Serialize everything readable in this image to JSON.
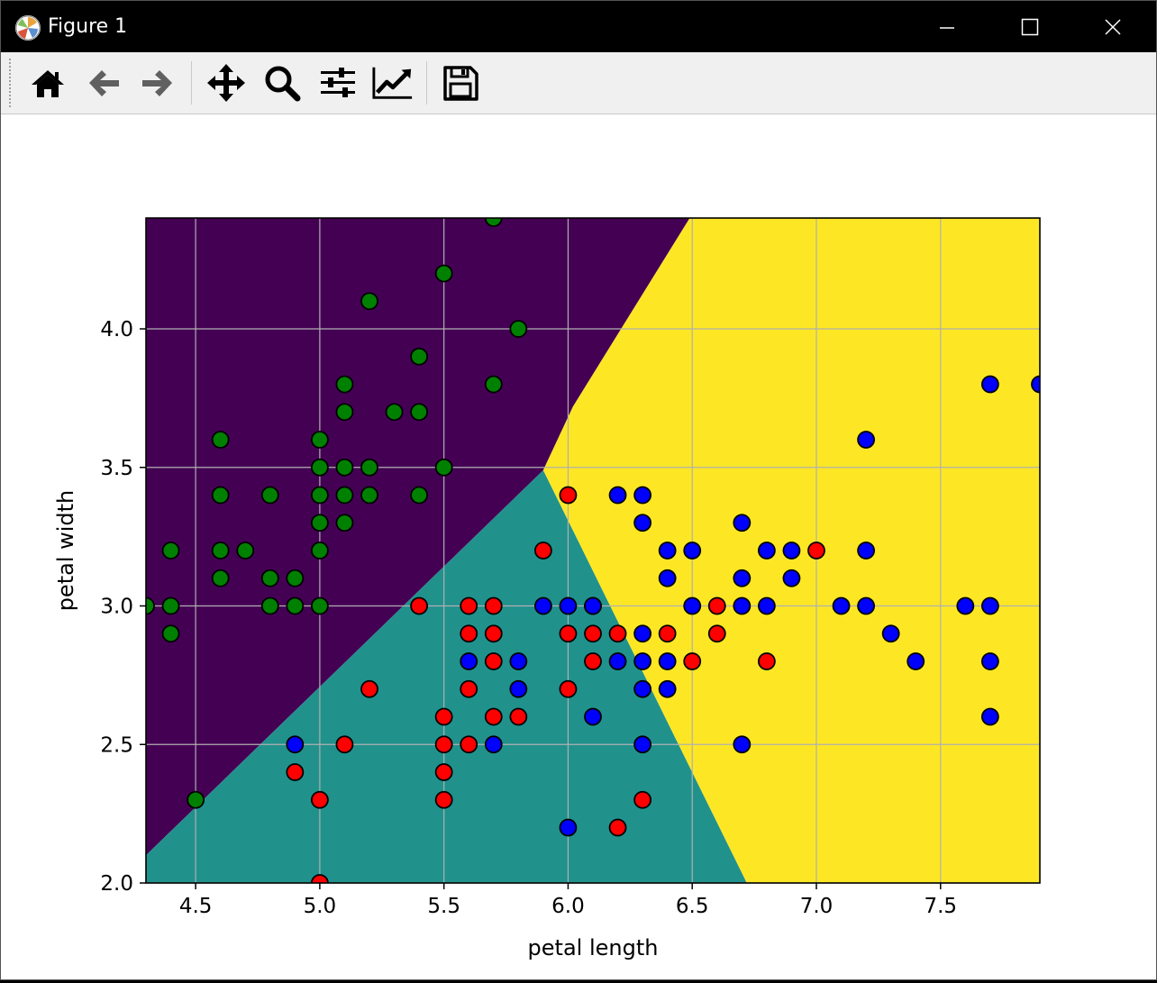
{
  "window": {
    "title": "Figure 1",
    "controls": [
      "minimize",
      "maximize",
      "close"
    ]
  },
  "toolbar": {
    "buttons": [
      {
        "name": "home",
        "icon": "home-icon"
      },
      {
        "name": "back",
        "icon": "back-arrow-icon"
      },
      {
        "name": "forward",
        "icon": "forward-arrow-icon"
      },
      {
        "name": "pan",
        "icon": "move-icon"
      },
      {
        "name": "zoom",
        "icon": "magnifier-icon"
      },
      {
        "name": "subplots",
        "icon": "sliders-icon"
      },
      {
        "name": "customize",
        "icon": "line-chart-icon"
      },
      {
        "name": "save",
        "icon": "floppy-disk-icon"
      }
    ]
  },
  "chart_data": {
    "type": "scatter",
    "title": "",
    "xlabel": "petal length",
    "ylabel": "petal width",
    "xlim": [
      4.3,
      7.9
    ],
    "ylim": [
      2.0,
      4.4
    ],
    "xticks": [
      "4.5",
      "5.0",
      "5.5",
      "6.0",
      "6.5",
      "7.0",
      "7.5"
    ],
    "yticks": [
      "2.0",
      "2.5",
      "3.0",
      "3.5",
      "4.0"
    ],
    "grid": true,
    "decision_regions": [
      {
        "label": "class 0",
        "color": "#440154",
        "polygon": [
          [
            4.3,
            2.1
          ],
          [
            5.9,
            3.49
          ],
          [
            6.02,
            3.72
          ],
          [
            6.49,
            4.4
          ],
          [
            4.3,
            4.4
          ]
        ]
      },
      {
        "label": "class 1",
        "color": "#21918c",
        "polygon": [
          [
            4.3,
            2.0
          ],
          [
            6.72,
            2.0
          ],
          [
            5.9,
            3.49
          ],
          [
            4.3,
            2.1
          ]
        ]
      },
      {
        "label": "class 2",
        "color": "#fde725",
        "polygon": [
          [
            6.72,
            2.0
          ],
          [
            7.9,
            2.0
          ],
          [
            7.9,
            4.4
          ],
          [
            6.49,
            4.4
          ],
          [
            6.02,
            3.72
          ],
          [
            5.9,
            3.49
          ]
        ]
      }
    ],
    "series": [
      {
        "color": "#008000",
        "points": [
          [
            4.3,
            3.0
          ],
          [
            4.4,
            3.2
          ],
          [
            4.4,
            3.0
          ],
          [
            4.4,
            2.9
          ],
          [
            4.5,
            2.3
          ],
          [
            4.6,
            3.6
          ],
          [
            4.6,
            3.4
          ],
          [
            4.6,
            3.2
          ],
          [
            4.6,
            3.1
          ],
          [
            4.7,
            3.2
          ],
          [
            4.8,
            3.4
          ],
          [
            4.8,
            3.1
          ],
          [
            4.8,
            3.0
          ],
          [
            4.9,
            3.1
          ],
          [
            4.9,
            3.0
          ],
          [
            5.0,
            3.6
          ],
          [
            5.0,
            3.5
          ],
          [
            5.0,
            3.4
          ],
          [
            5.0,
            3.3
          ],
          [
            5.0,
            3.2
          ],
          [
            5.0,
            3.0
          ],
          [
            5.1,
            3.8
          ],
          [
            5.1,
            3.7
          ],
          [
            5.1,
            3.5
          ],
          [
            5.1,
            3.4
          ],
          [
            5.1,
            3.3
          ],
          [
            5.2,
            4.1
          ],
          [
            5.2,
            3.5
          ],
          [
            5.2,
            3.4
          ],
          [
            5.3,
            3.7
          ],
          [
            5.4,
            3.9
          ],
          [
            5.4,
            3.7
          ],
          [
            5.4,
            3.4
          ],
          [
            5.5,
            4.2
          ],
          [
            5.5,
            3.5
          ],
          [
            5.7,
            4.4
          ],
          [
            5.7,
            3.8
          ],
          [
            5.8,
            4.0
          ]
        ]
      },
      {
        "color": "#ff0000",
        "points": [
          [
            4.9,
            2.4
          ],
          [
            5.0,
            2.3
          ],
          [
            5.0,
            2.0
          ],
          [
            5.1,
            2.5
          ],
          [
            5.2,
            2.7
          ],
          [
            5.4,
            3.0
          ],
          [
            5.5,
            2.6
          ],
          [
            5.5,
            2.5
          ],
          [
            5.5,
            2.4
          ],
          [
            5.5,
            2.3
          ],
          [
            5.6,
            3.0
          ],
          [
            5.6,
            2.9
          ],
          [
            5.6,
            2.7
          ],
          [
            5.6,
            2.5
          ],
          [
            5.7,
            3.0
          ],
          [
            5.7,
            2.9
          ],
          [
            5.7,
            2.8
          ],
          [
            5.7,
            2.6
          ],
          [
            5.8,
            2.6
          ],
          [
            5.9,
            3.2
          ],
          [
            6.0,
            3.4
          ],
          [
            6.0,
            2.9
          ],
          [
            6.0,
            2.7
          ],
          [
            6.1,
            3.0
          ],
          [
            6.1,
            2.9
          ],
          [
            6.1,
            2.8
          ],
          [
            6.2,
            2.9
          ],
          [
            6.2,
            2.2
          ],
          [
            6.3,
            2.3
          ],
          [
            6.4,
            2.9
          ],
          [
            6.5,
            2.8
          ],
          [
            6.6,
            3.0
          ],
          [
            6.6,
            2.9
          ],
          [
            6.8,
            2.8
          ],
          [
            7.0,
            3.2
          ]
        ]
      },
      {
        "color": "#0000ff",
        "points": [
          [
            4.9,
            2.5
          ],
          [
            5.6,
            2.8
          ],
          [
            5.7,
            2.5
          ],
          [
            5.8,
            2.8
          ],
          [
            5.8,
            2.7
          ],
          [
            5.9,
            3.0
          ],
          [
            6.0,
            3.0
          ],
          [
            6.0,
            2.2
          ],
          [
            6.1,
            3.0
          ],
          [
            6.1,
            2.6
          ],
          [
            6.2,
            3.4
          ],
          [
            6.2,
            2.8
          ],
          [
            6.3,
            3.4
          ],
          [
            6.3,
            3.3
          ],
          [
            6.3,
            2.9
          ],
          [
            6.3,
            2.8
          ],
          [
            6.3,
            2.7
          ],
          [
            6.3,
            2.5
          ],
          [
            6.4,
            3.2
          ],
          [
            6.4,
            3.1
          ],
          [
            6.4,
            2.8
          ],
          [
            6.4,
            2.7
          ],
          [
            6.5,
            3.2
          ],
          [
            6.5,
            3.0
          ],
          [
            6.7,
            3.3
          ],
          [
            6.7,
            3.1
          ],
          [
            6.7,
            3.0
          ],
          [
            6.7,
            2.5
          ],
          [
            6.8,
            3.2
          ],
          [
            6.8,
            3.0
          ],
          [
            6.9,
            3.2
          ],
          [
            6.9,
            3.1
          ],
          [
            7.1,
            3.0
          ],
          [
            7.2,
            3.6
          ],
          [
            7.2,
            3.2
          ],
          [
            7.2,
            3.0
          ],
          [
            7.3,
            2.9
          ],
          [
            7.4,
            2.8
          ],
          [
            7.6,
            3.0
          ],
          [
            7.7,
            3.8
          ],
          [
            7.7,
            3.0
          ],
          [
            7.7,
            2.8
          ],
          [
            7.7,
            2.6
          ],
          [
            7.9,
            3.8
          ]
        ]
      }
    ]
  }
}
